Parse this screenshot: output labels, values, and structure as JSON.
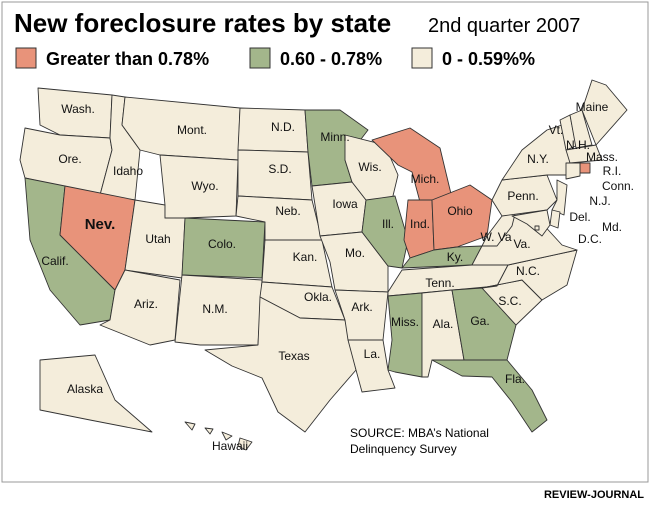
{
  "title": "New foreclosure rates by state",
  "subtitle": "2nd quarter 2007",
  "legend": [
    {
      "label": "Greater than 0.78%",
      "color": "#e8937a"
    },
    {
      "label": "0.60 - 0.78%",
      "color": "#a3b68b"
    },
    {
      "label": "0 - 0.59%%",
      "color": "#f4eddb"
    }
  ],
  "states": [
    {
      "name": "Wash.",
      "legend": 2
    },
    {
      "name": "Ore.",
      "legend": 2
    },
    {
      "name": "Calif.",
      "legend": 1
    },
    {
      "name": "Idaho",
      "legend": 2
    },
    {
      "name": "Nev.",
      "legend": 0
    },
    {
      "name": "Utah",
      "legend": 2
    },
    {
      "name": "Ariz.",
      "legend": 2
    },
    {
      "name": "Mont.",
      "legend": 2
    },
    {
      "name": "Wyo.",
      "legend": 2
    },
    {
      "name": "Colo.",
      "legend": 1
    },
    {
      "name": "N.M.",
      "legend": 2
    },
    {
      "name": "N.D.",
      "legend": 2
    },
    {
      "name": "S.D.",
      "legend": 2
    },
    {
      "name": "Neb.",
      "legend": 2
    },
    {
      "name": "Kan.",
      "legend": 2
    },
    {
      "name": "Okla.",
      "legend": 2
    },
    {
      "name": "Texas",
      "legend": 2
    },
    {
      "name": "Minn.",
      "legend": 1
    },
    {
      "name": "Iowa",
      "legend": 2
    },
    {
      "name": "Mo.",
      "legend": 2
    },
    {
      "name": "Ark.",
      "legend": 2
    },
    {
      "name": "La.",
      "legend": 2
    },
    {
      "name": "Wis.",
      "legend": 2
    },
    {
      "name": "Ill.",
      "legend": 1
    },
    {
      "name": "Mich.",
      "legend": 0
    },
    {
      "name": "Ind.",
      "legend": 0
    },
    {
      "name": "Ohio",
      "legend": 0
    },
    {
      "name": "Ky.",
      "legend": 1
    },
    {
      "name": "Tenn.",
      "legend": 2
    },
    {
      "name": "Miss.",
      "legend": 1
    },
    {
      "name": "Ala.",
      "legend": 2
    },
    {
      "name": "Ga.",
      "legend": 1
    },
    {
      "name": "Fla.",
      "legend": 1
    },
    {
      "name": "S.C.",
      "legend": 2
    },
    {
      "name": "N.C.",
      "legend": 2
    },
    {
      "name": "Va.",
      "legend": 2
    },
    {
      "name": "W. Va",
      "legend": 2
    },
    {
      "name": "Penn.",
      "legend": 2
    },
    {
      "name": "N.Y.",
      "legend": 2
    },
    {
      "name": "Vt.",
      "legend": 2
    },
    {
      "name": "N.H.",
      "legend": 2
    },
    {
      "name": "Maine",
      "legend": 2
    },
    {
      "name": "Mass.",
      "legend": 2
    },
    {
      "name": "R.I.",
      "legend": 0
    },
    {
      "name": "Conn.",
      "legend": 2
    },
    {
      "name": "N.J.",
      "legend": 2
    },
    {
      "name": "Del.",
      "legend": 2
    },
    {
      "name": "Md.",
      "legend": 2
    },
    {
      "name": "D.C.",
      "legend": 2
    },
    {
      "name": "Alaska",
      "legend": 2
    },
    {
      "name": "Hawaii",
      "legend": 2
    }
  ],
  "source": [
    "SOURCE: MBA’s National",
    "Delinquency Survey"
  ],
  "credit": "REVIEW-JOURNAL"
}
